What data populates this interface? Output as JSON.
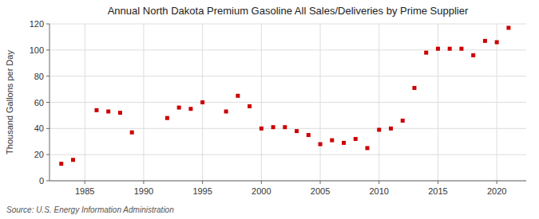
{
  "chart_data": {
    "type": "scatter",
    "title": "Annual North Dakota Premium Gasoline All Sales/Deliveries by Prime Supplier",
    "y_label": "Thousand Gallons per Day",
    "annotations": [
      "Source: U.S. Energy Information Administration"
    ],
    "x": [
      1983,
      1984,
      1986,
      1987,
      1988,
      1989,
      1992,
      1993,
      1994,
      1995,
      1997,
      1998,
      1999,
      2000,
      2001,
      2002,
      2003,
      2004,
      2005,
      2006,
      2007,
      2008,
      2009,
      2010,
      2011,
      2012,
      2013,
      2014,
      2015,
      2016,
      2017,
      2018,
      2019,
      2020,
      2021
    ],
    "values": [
      13,
      16,
      54,
      53,
      52,
      37,
      48,
      56,
      55,
      60,
      53,
      65,
      57,
      40,
      41,
      41,
      38,
      35,
      28,
      31,
      29,
      32,
      25,
      39,
      40,
      46,
      71,
      98,
      101,
      101,
      101,
      96,
      107,
      106,
      117
    ],
    "color": "#cc0000",
    "marker": "square",
    "xlim": [
      1982,
      2022.5
    ],
    "ylim": [
      0,
      120
    ],
    "xticks": [
      1985,
      1990,
      1995,
      2000,
      2005,
      2010,
      2015,
      2020
    ],
    "yticks": [
      0,
      20,
      40,
      60,
      80,
      100,
      120
    ],
    "grid": true
  }
}
